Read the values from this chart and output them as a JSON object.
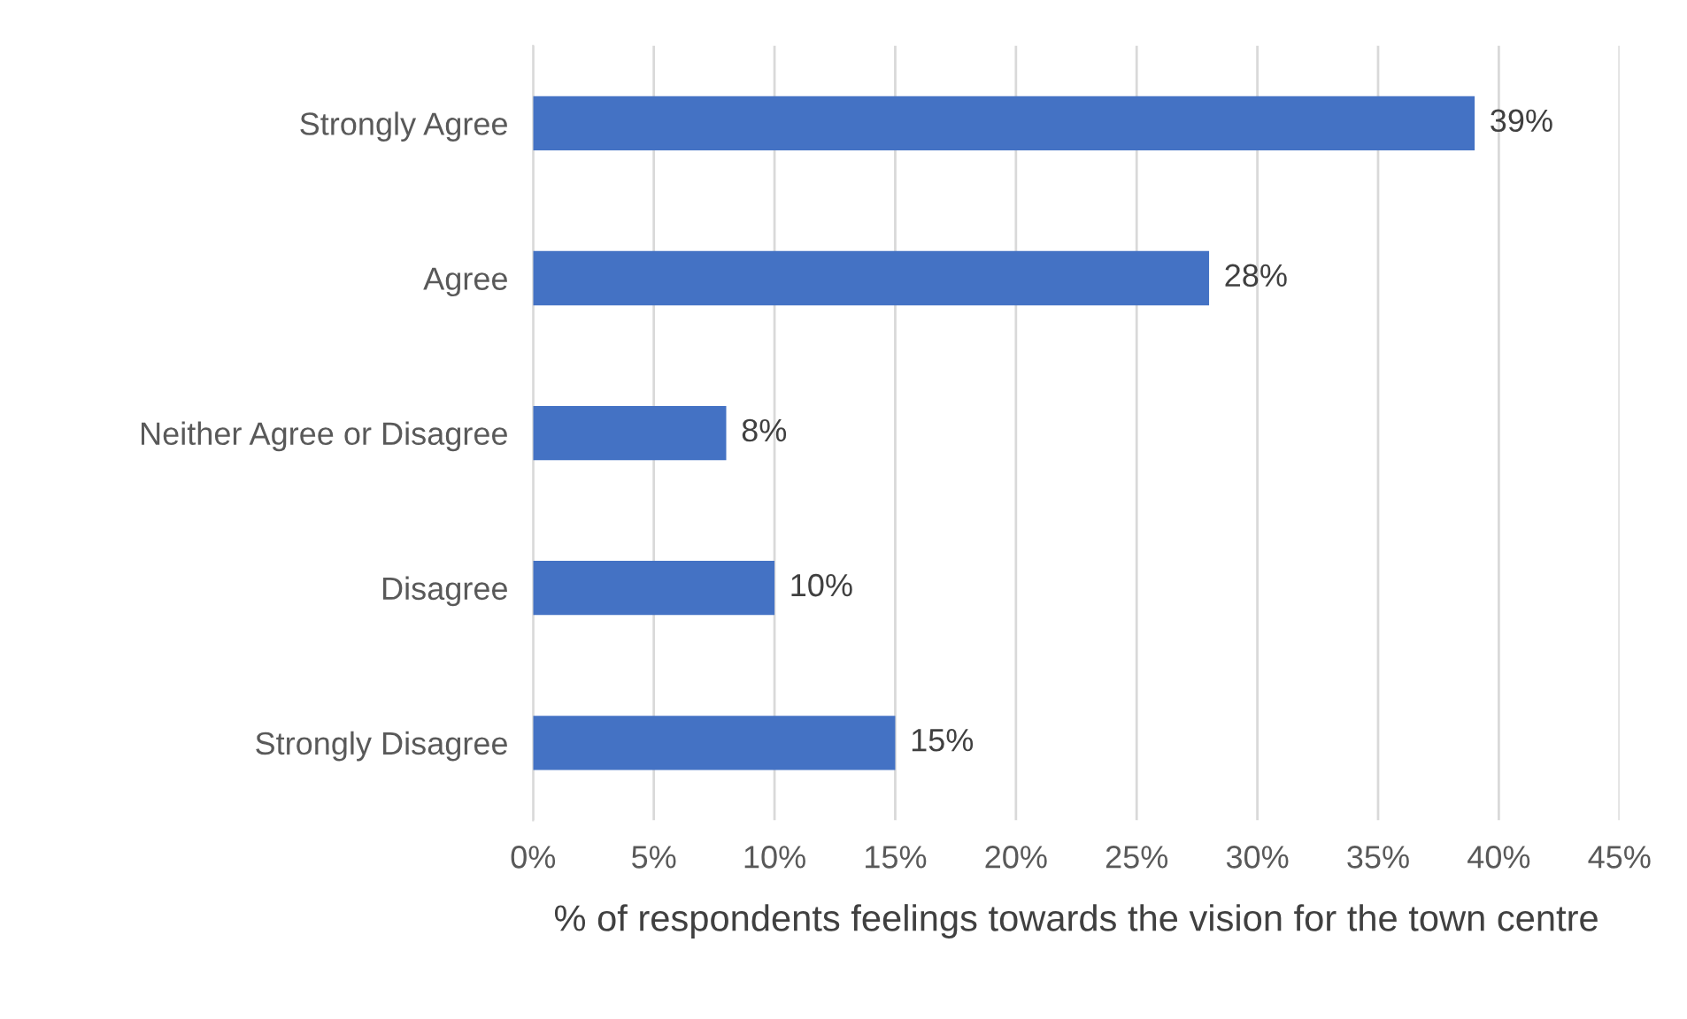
{
  "chart_data": {
    "type": "bar",
    "orientation": "horizontal",
    "xlabel": "% of respondents feelings towards the vision for the town centre",
    "categories": [
      "Strongly Agree",
      "Agree",
      "Neither Agree or Disagree",
      "Disagree",
      "Strongly Disagree"
    ],
    "values": [
      39,
      28,
      8,
      10,
      15
    ],
    "value_labels": [
      "39%",
      "28%",
      "8%",
      "10%",
      "15%"
    ],
    "color": "#4472c4",
    "xlim": [
      0,
      45
    ],
    "xticks": [
      {
        "value": 0,
        "label": "0%"
      },
      {
        "value": 5,
        "label": "5%"
      },
      {
        "value": 10,
        "label": "10%"
      },
      {
        "value": 15,
        "label": "15%"
      },
      {
        "value": 20,
        "label": "20%"
      },
      {
        "value": 25,
        "label": "25%"
      },
      {
        "value": 30,
        "label": "30%"
      },
      {
        "value": 35,
        "label": "35%"
      },
      {
        "value": 40,
        "label": "40%"
      },
      {
        "value": 45,
        "label": "45%"
      }
    ],
    "grid": "x"
  }
}
